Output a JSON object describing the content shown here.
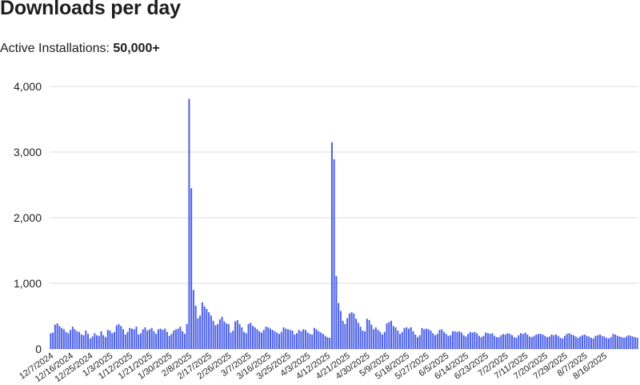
{
  "page": {
    "title": "Downloads per day",
    "subtitle_label": "Active Installations:",
    "subtitle_value": "50,000+"
  },
  "chart_data": {
    "type": "bar",
    "title": "Downloads per day",
    "xlabel": "",
    "ylabel": "",
    "ylim": [
      0,
      4000
    ],
    "yticks": [
      0,
      1000,
      2000,
      3000,
      4000
    ],
    "ytick_labels": [
      "0",
      "1,000",
      "2,000",
      "3,000",
      "4,000"
    ],
    "x_tick_labels": [
      "12/7/2024",
      "12/16/2024",
      "12/25/2024",
      "1/3/2025",
      "1/12/2025",
      "1/21/2025",
      "1/30/2025",
      "2/8/2025",
      "2/17/2025",
      "2/26/2025",
      "3/7/2025",
      "3/16/2025",
      "3/25/2025",
      "4/3/2025",
      "4/12/2025",
      "4/21/2025",
      "4/30/2025",
      "5/9/2025",
      "5/18/2025",
      "5/27/2025",
      "6/5/2025",
      "6/14/2025",
      "6/23/2025",
      "7/2/2025",
      "7/11/2025",
      "7/20/2025",
      "7/29/2025",
      "8/7/2025",
      "8/16/2025"
    ],
    "tick_every_days": 9,
    "grid": true,
    "bar_color": "#4a5fe8",
    "grid_color": "#dddddd",
    "start_date": "12/7/2024",
    "values": [
      240,
      250,
      370,
      390,
      350,
      320,
      300,
      260,
      240,
      290,
      340,
      300,
      270,
      260,
      220,
      210,
      280,
      230,
      160,
      190,
      240,
      210,
      200,
      270,
      210,
      180,
      290,
      280,
      240,
      260,
      360,
      380,
      350,
      300,
      220,
      260,
      320,
      310,
      300,
      340,
      220,
      240,
      300,
      330,
      280,
      300,
      320,
      270,
      230,
      300,
      310,
      290,
      310,
      260,
      200,
      230,
      280,
      300,
      310,
      340,
      270,
      230,
      380,
      3810,
      2450,
      900,
      660,
      470,
      510,
      710,
      650,
      610,
      560,
      510,
      430,
      360,
      380,
      450,
      490,
      420,
      390,
      380,
      250,
      280,
      420,
      440,
      380,
      330,
      260,
      240,
      380,
      400,
      350,
      330,
      300,
      270,
      250,
      290,
      340,
      330,
      310,
      290,
      270,
      250,
      230,
      260,
      330,
      310,
      300,
      290,
      280,
      220,
      240,
      290,
      270,
      300,
      290,
      250,
      230,
      220,
      320,
      300,
      270,
      250,
      230,
      200,
      180,
      170,
      3150,
      2890,
      1110,
      700,
      580,
      430,
      380,
      470,
      540,
      560,
      540,
      460,
      400,
      340,
      280,
      270,
      460,
      440,
      370,
      300,
      330,
      290,
      260,
      220,
      260,
      390,
      410,
      430,
      350,
      330,
      280,
      230,
      260,
      320,
      330,
      310,
      330,
      270,
      220,
      180,
      210,
      320,
      300,
      310,
      300,
      280,
      240,
      210,
      230,
      290,
      300,
      260,
      230,
      200,
      210,
      270,
      270,
      260,
      270,
      250,
      210,
      190,
      230,
      260,
      250,
      260,
      240,
      200,
      180,
      200,
      250,
      240,
      230,
      240,
      200,
      180,
      180,
      210,
      230,
      220,
      240,
      230,
      210,
      180,
      170,
      210,
      240,
      230,
      250,
      220,
      190,
      180,
      200,
      220,
      230,
      230,
      220,
      200,
      180,
      190,
      220,
      210,
      220,
      200,
      170,
      160,
      200,
      230,
      240,
      220,
      210,
      190,
      170,
      190,
      210,
      220,
      200,
      190,
      170,
      160,
      200,
      210,
      220,
      200,
      190,
      170,
      160,
      180,
      230,
      220,
      200,
      190,
      180,
      170,
      190,
      210,
      200,
      190,
      180,
      170
    ]
  }
}
